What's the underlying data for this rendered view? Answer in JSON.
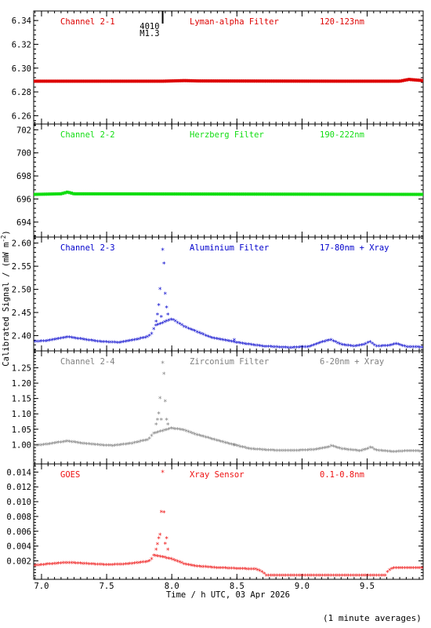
{
  "chart_data": {
    "type": "scatter",
    "x_axis_label": "Time / h UTC, 03 Apr 2026",
    "x_range": [
      6.94,
      9.93
    ],
    "x_ticks": [
      7.0,
      7.5,
      8.0,
      8.5,
      9.0,
      9.5
    ],
    "x_tick_labels": [
      "7.0",
      "7.5",
      "8.0",
      "8.5",
      "9.0",
      "9.5"
    ],
    "y_axis_label": "Calibrated Signal / (mW m",
    "y_axis_label_sup": "-2",
    "y_axis_label_end": ")",
    "footnote": "(1 minute averages)",
    "flare_annotation": {
      "line1": "4010",
      "line2": "M1.3",
      "x": 7.93
    },
    "panels": [
      {
        "channel": "Channel 2-1",
        "filter": "Lyman-alpha Filter",
        "band": "120-123nm",
        "color": "#dd0000",
        "marker": "dot",
        "ylim": [
          6.253,
          6.348
        ],
        "yticks": [
          6.26,
          6.28,
          6.3,
          6.32,
          6.34
        ],
        "ytick_labels": [
          "6.26",
          "6.28",
          "6.30",
          "6.32",
          "6.34"
        ],
        "profile": [
          [
            6.94,
            6.289
          ],
          [
            7.93,
            6.289
          ],
          [
            8.1,
            6.2895
          ],
          [
            8.2,
            6.2892
          ],
          [
            9.3,
            6.289
          ],
          [
            9.75,
            6.289
          ],
          [
            9.82,
            6.2905
          ],
          [
            9.93,
            6.2895
          ]
        ],
        "spikes": []
      },
      {
        "channel": "Channel 2-2",
        "filter": "Herzberg Filter",
        "band": "190-222nm",
        "color": "#11dd11",
        "marker": "dot",
        "ylim": [
          692.7,
          702.5
        ],
        "yticks": [
          694,
          696,
          698,
          700,
          702
        ],
        "ytick_labels": [
          "694",
          "696",
          "698",
          "700",
          "702"
        ],
        "profile": [
          [
            6.94,
            696.4
          ],
          [
            7.15,
            696.45
          ],
          [
            7.2,
            696.6
          ],
          [
            7.25,
            696.45
          ],
          [
            9.93,
            696.4
          ]
        ],
        "spikes": []
      },
      {
        "channel": "Channel 2-3",
        "filter": "Aluminium Filter",
        "band": "17-80nm + Xray",
        "color": "#0000cc",
        "marker": "star",
        "ylim": [
          2.367,
          2.613
        ],
        "yticks": [
          2.4,
          2.45,
          2.5,
          2.55,
          2.6
        ],
        "ytick_labels": [
          "2.40",
          "2.45",
          "2.50",
          "2.55",
          "2.60"
        ],
        "profile": [
          [
            6.94,
            2.386
          ],
          [
            7.05,
            2.388
          ],
          [
            7.2,
            2.396
          ],
          [
            7.3,
            2.392
          ],
          [
            7.45,
            2.386
          ],
          [
            7.6,
            2.384
          ],
          [
            7.75,
            2.392
          ],
          [
            7.82,
            2.397
          ],
          [
            7.85,
            2.405
          ],
          [
            7.87,
            2.42
          ],
          [
            8.0,
            2.435
          ],
          [
            8.1,
            2.418
          ],
          [
            8.3,
            2.395
          ],
          [
            8.5,
            2.384
          ],
          [
            8.7,
            2.376
          ],
          [
            8.9,
            2.373
          ],
          [
            9.05,
            2.375
          ],
          [
            9.15,
            2.385
          ],
          [
            9.22,
            2.39
          ],
          [
            9.3,
            2.38
          ],
          [
            9.4,
            2.376
          ],
          [
            9.48,
            2.38
          ],
          [
            9.52,
            2.386
          ],
          [
            9.57,
            2.376
          ],
          [
            9.68,
            2.378
          ],
          [
            9.72,
            2.382
          ],
          [
            9.8,
            2.375
          ],
          [
            9.93,
            2.374
          ]
        ],
        "spikes": [
          [
            7.88,
            2.43
          ],
          [
            7.89,
            2.445
          ],
          [
            7.9,
            2.465
          ],
          [
            7.91,
            2.5
          ],
          [
            7.92,
            2.44
          ],
          [
            7.93,
            2.585
          ],
          [
            7.94,
            2.555
          ],
          [
            7.95,
            2.49
          ],
          [
            7.96,
            2.46
          ],
          [
            7.97,
            2.445
          ],
          [
            8.48,
            2.39
          ]
        ]
      },
      {
        "channel": "Channel 2-4",
        "filter": "Zirconium Filter",
        "band": "6-20nm + Xray",
        "color": "#808080",
        "marker": "star",
        "ylim": [
          0.937,
          1.305
        ],
        "yticks": [
          1.0,
          1.05,
          1.1,
          1.15,
          1.2,
          1.25
        ],
        "ytick_labels": [
          "1.00",
          "1.05",
          "1.10",
          "1.15",
          "1.20",
          "1.25"
        ],
        "profile": [
          [
            6.94,
            0.995
          ],
          [
            7.05,
            1.0
          ],
          [
            7.2,
            1.01
          ],
          [
            7.3,
            1.003
          ],
          [
            7.45,
            0.997
          ],
          [
            7.55,
            0.995
          ],
          [
            7.7,
            1.003
          ],
          [
            7.82,
            1.015
          ],
          [
            7.86,
            1.035
          ],
          [
            8.0,
            1.052
          ],
          [
            8.1,
            1.045
          ],
          [
            8.2,
            1.03
          ],
          [
            8.35,
            1.012
          ],
          [
            8.5,
            0.995
          ],
          [
            8.6,
            0.985
          ],
          [
            8.75,
            0.98
          ],
          [
            8.95,
            0.979
          ],
          [
            9.1,
            0.982
          ],
          [
            9.2,
            0.99
          ],
          [
            9.23,
            0.995
          ],
          [
            9.3,
            0.985
          ],
          [
            9.45,
            0.978
          ],
          [
            9.5,
            0.985
          ],
          [
            9.53,
            0.99
          ],
          [
            9.57,
            0.98
          ],
          [
            9.7,
            0.975
          ],
          [
            9.8,
            0.978
          ],
          [
            9.93,
            0.977
          ]
        ],
        "spikes": [
          [
            7.88,
            1.065
          ],
          [
            7.89,
            1.08
          ],
          [
            7.9,
            1.1
          ],
          [
            7.91,
            1.15
          ],
          [
            7.92,
            1.08
          ],
          [
            7.93,
            1.265
          ],
          [
            7.94,
            1.23
          ],
          [
            7.95,
            1.14
          ],
          [
            7.96,
            1.08
          ],
          [
            7.97,
            1.065
          ],
          [
            8.48,
            0.998
          ]
        ]
      },
      {
        "channel": "GOES",
        "filter": "Xray Sensor",
        "band": "0.1-0.8nm",
        "color": "#ee1111",
        "marker": "star",
        "ylim": [
          -0.0005,
          0.0151
        ],
        "yticks": [
          0.002,
          0.004,
          0.006,
          0.008,
          0.01,
          0.012,
          0.014
        ],
        "ytick_labels": [
          "0.002",
          "0.004",
          "0.006",
          "0.008",
          "0.010",
          "0.012",
          "0.014"
        ],
        "profile": [
          [
            6.94,
            0.0013
          ],
          [
            7.05,
            0.0015
          ],
          [
            7.2,
            0.0017
          ],
          [
            7.3,
            0.0016
          ],
          [
            7.5,
            0.0014
          ],
          [
            7.65,
            0.0015
          ],
          [
            7.8,
            0.0018
          ],
          [
            7.84,
            0.002
          ],
          [
            7.86,
            0.0027
          ],
          [
            8.0,
            0.0022
          ],
          [
            8.1,
            0.0015
          ],
          [
            8.2,
            0.0012
          ],
          [
            8.35,
            0.001
          ],
          [
            8.5,
            0.0009
          ],
          [
            8.65,
            0.0008
          ],
          [
            8.7,
            0.0004
          ],
          [
            8.72,
            0.0
          ],
          [
            9.64,
            0.0
          ],
          [
            9.66,
            0.0006
          ],
          [
            9.7,
            0.001
          ],
          [
            9.93,
            0.001
          ]
        ],
        "spikes": [
          [
            7.88,
            0.0035
          ],
          [
            7.89,
            0.0042
          ],
          [
            7.9,
            0.005
          ],
          [
            7.91,
            0.0055
          ],
          [
            7.92,
            0.0086
          ],
          [
            7.93,
            0.014
          ],
          [
            7.94,
            0.0085
          ],
          [
            7.95,
            0.0043
          ],
          [
            7.96,
            0.005
          ],
          [
            7.97,
            0.0035
          ]
        ]
      }
    ]
  }
}
